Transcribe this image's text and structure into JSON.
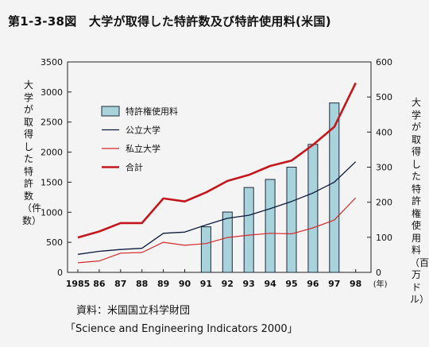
{
  "title": "第1-3-38図　大学が取得した特許数及び特許使用料(米国)",
  "source": {
    "line1": "資料：米国国立科学財団",
    "line2": "「Science and Engineering Indicators 2000」"
  },
  "chart_data": {
    "type": "bar+line",
    "categories": [
      "1985",
      "86",
      "87",
      "88",
      "89",
      "90",
      "91",
      "92",
      "93",
      "94",
      "95",
      "96",
      "97",
      "98"
    ],
    "x_unit": "(年)",
    "y_left": {
      "label": "大学が取得した特許数（件数）",
      "ylim": [
        0,
        3500
      ],
      "ticks": [
        0,
        500,
        1000,
        1500,
        2000,
        2500,
        3000,
        3500
      ]
    },
    "y_right": {
      "label": "大学が取得した特許権使用料（百万ドル）",
      "ylim": [
        0,
        600
      ],
      "ticks": [
        0,
        100,
        200,
        300,
        400,
        500,
        600
      ]
    },
    "legend_position": "top-left",
    "series": [
      {
        "name": "特許権使用料",
        "kind": "bar",
        "axis": "right",
        "color": "#a9d3dc",
        "values": [
          null,
          null,
          null,
          null,
          null,
          null,
          130,
          172,
          242,
          265,
          300,
          365,
          483,
          null
        ]
      },
      {
        "name": "公立大学",
        "kind": "line",
        "axis": "left",
        "color": "#0c1a3c",
        "values": [
          300,
          350,
          380,
          400,
          650,
          670,
          790,
          900,
          950,
          1060,
          1180,
          1320,
          1500,
          1840
        ]
      },
      {
        "name": "私立大学",
        "kind": "line",
        "axis": "left",
        "color": "#d52a2a",
        "values": [
          160,
          190,
          320,
          330,
          500,
          450,
          480,
          580,
          620,
          650,
          640,
          740,
          870,
          1240
        ]
      },
      {
        "name": "合計",
        "kind": "line",
        "axis": "left",
        "color": "#c4161c",
        "values": [
          580,
          680,
          820,
          820,
          1230,
          1180,
          1330,
          1520,
          1620,
          1770,
          1860,
          2120,
          2420,
          3150
        ]
      }
    ]
  }
}
